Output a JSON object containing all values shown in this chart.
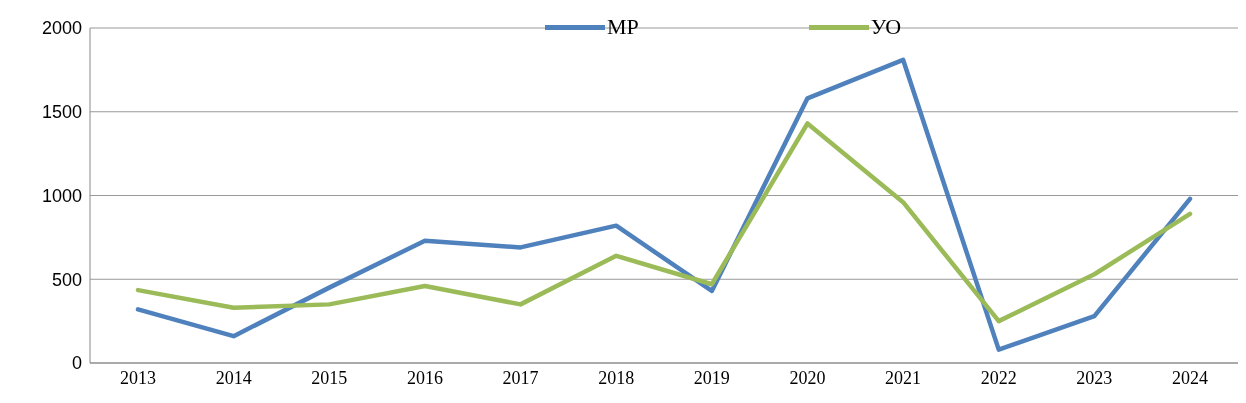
{
  "chart_data": {
    "type": "line",
    "categories": [
      "2013",
      "2014",
      "2015",
      "2016",
      "2017",
      "2018",
      "2019",
      "2020",
      "2021",
      "2022",
      "2023",
      "2024"
    ],
    "series": [
      {
        "name": "МР",
        "color": "#4f81bd",
        "values": [
          320,
          160,
          450,
          730,
          690,
          820,
          430,
          1580,
          1810,
          80,
          280,
          980
        ]
      },
      {
        "name": "УО",
        "color": "#9bbb59",
        "values": [
          435,
          330,
          350,
          460,
          350,
          640,
          470,
          1430,
          960,
          250,
          530,
          890
        ]
      }
    ],
    "ylim": [
      0,
      2000
    ],
    "yticks": [
      0,
      500,
      1000,
      1500,
      2000
    ],
    "grid": "y",
    "legend": "top",
    "marker": "none",
    "line_style": "solid"
  }
}
